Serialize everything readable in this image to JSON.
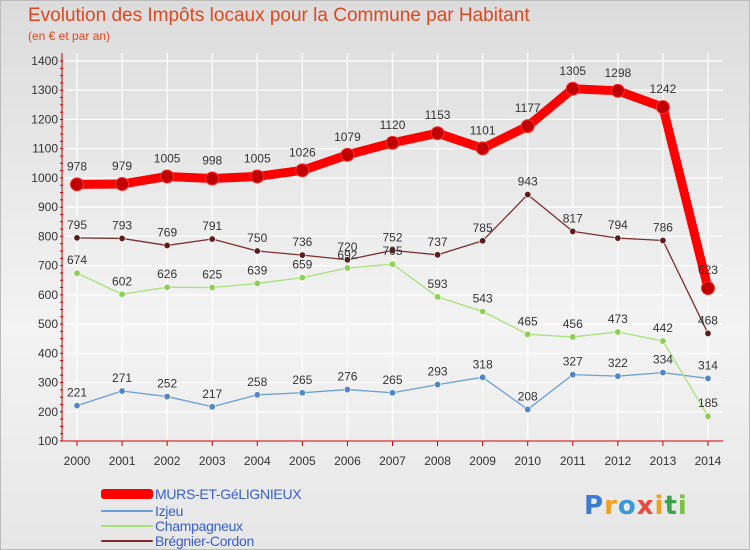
{
  "chart_data": {
    "type": "line",
    "title": "Evolution des Impôts locaux pour la Commune par Habitant",
    "subtitle": "(en € et par an)",
    "xlabel": "",
    "ylabel": "",
    "ylim": [
      100,
      1400
    ],
    "yticks": [
      "100",
      "200",
      "300",
      "400",
      "500",
      "600",
      "700",
      "800",
      "900",
      "1000",
      "1100",
      "1200",
      "1300",
      "1400"
    ],
    "categories": [
      "2000",
      "2001",
      "2002",
      "2003",
      "2004",
      "2005",
      "2006",
      "2007",
      "2008",
      "2009",
      "2010",
      "2011",
      "2012",
      "2013",
      "2014"
    ],
    "series": [
      {
        "name": "MURS-ET-GéLIGNIEUX",
        "color": "#ff0000",
        "marker_color": "#c00000",
        "values": [
          978,
          979,
          1005,
          998,
          1005,
          1026,
          1079,
          1120,
          1153,
          1101,
          1177,
          1305,
          1298,
          1242,
          623
        ]
      },
      {
        "name": "Izjeu",
        "color": "#6a9fd6",
        "marker_color": "#4f86c6",
        "values": [
          221,
          271,
          252,
          217,
          258,
          265,
          276,
          265,
          293,
          318,
          208,
          327,
          322,
          334,
          314
        ]
      },
      {
        "name": "Champagneux",
        "color": "#a8e07a",
        "marker_color": "#8ccf55",
        "values": [
          674,
          602,
          626,
          625,
          639,
          659,
          692,
          705,
          593,
          543,
          465,
          456,
          473,
          442,
          185
        ]
      },
      {
        "name": "Brégnier-Cordon",
        "color": "#7a2e2e",
        "marker_color": "#5c1c1c",
        "values": [
          795,
          793,
          769,
          791,
          750,
          736,
          720,
          752,
          737,
          785,
          943,
          817,
          794,
          786,
          468
        ]
      }
    ],
    "legend_position": "bottom-left",
    "grid": true
  },
  "brand": {
    "letters": [
      {
        "char": "P",
        "color": "#3a7bd5"
      },
      {
        "char": "r",
        "color": "#f0a020"
      },
      {
        "char": "o",
        "color": "#3a9ad9"
      },
      {
        "char": "x",
        "color": "#e84b3c"
      },
      {
        "char": "i",
        "color": "#f0a020"
      },
      {
        "char": "t",
        "color": "#3aa34a"
      },
      {
        "char": "i",
        "color": "#7ac143"
      }
    ]
  }
}
